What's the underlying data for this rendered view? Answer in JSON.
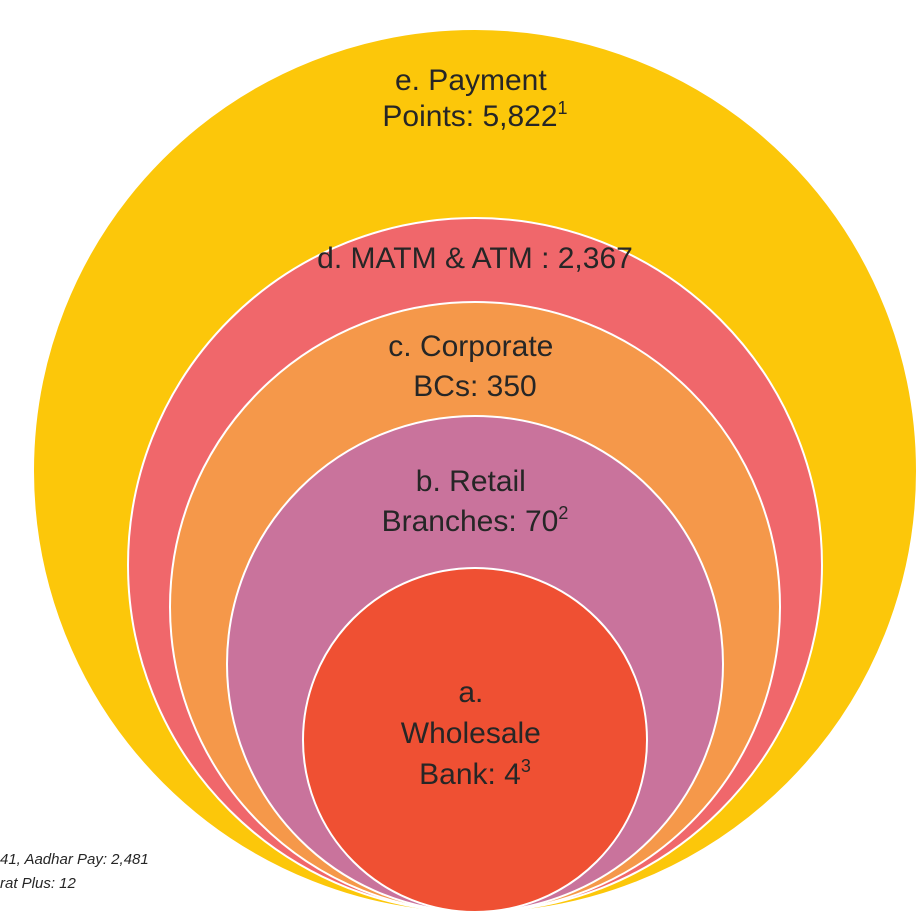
{
  "nodes": [
    {
      "lines": [
        "e. Payment",
        "Points: 5,822"
      ],
      "sup": "1"
    },
    {
      "lines": [
        "d. MATM & ATM : 2,367"
      ]
    },
    {
      "lines": [
        "c. Corporate",
        "BCs: 350"
      ]
    },
    {
      "lines": [
        "b. Retail",
        "Branches: 70"
      ],
      "sup": "2"
    },
    {
      "lines": [
        "a.",
        "Wholesale",
        "Bank: 4"
      ],
      "sup": "3"
    }
  ],
  "footnotes": [
    "41, Aadhar Pay: 2,481",
    "rat Plus: 12"
  ]
}
